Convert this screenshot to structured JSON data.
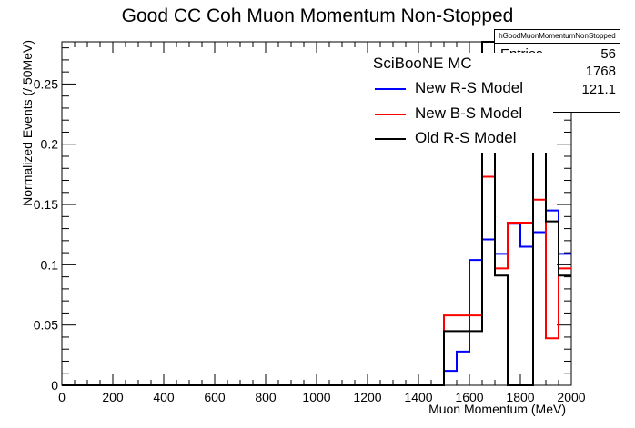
{
  "chart_data": {
    "type": "line",
    "title": "Good CC Coh Muon Momentum Non-Stopped",
    "xlabel": "Muon Momentum (MeV)",
    "ylabel": "Normalized Events (/ 50MeV)",
    "xlim": [
      0,
      2000
    ],
    "ylim": [
      0,
      0.285
    ],
    "x_ticks": [
      "0",
      "200",
      "400",
      "600",
      "800",
      "1000",
      "1200",
      "1400",
      "1600",
      "1800",
      "2000"
    ],
    "y_ticks": [
      "0",
      "0.05",
      "0.1",
      "0.15",
      "0.2",
      "0.25"
    ],
    "y_tick_values": [
      0,
      0.05,
      0.1,
      0.15,
      0.2,
      0.25
    ],
    "bin_edges": [
      0,
      50,
      100,
      150,
      200,
      250,
      300,
      350,
      400,
      450,
      500,
      550,
      600,
      650,
      700,
      750,
      800,
      850,
      900,
      950,
      1000,
      1050,
      1100,
      1150,
      1200,
      1250,
      1300,
      1350,
      1400,
      1450,
      1500,
      1550,
      1600,
      1650,
      1700,
      1750,
      1800,
      1850,
      1900,
      1950,
      2000
    ],
    "grid": false,
    "series": [
      {
        "name": "New R-S Model",
        "color": "#0000ff",
        "values": [
          0,
          0,
          0,
          0,
          0,
          0,
          0,
          0,
          0,
          0,
          0,
          0,
          0,
          0,
          0,
          0,
          0,
          0,
          0,
          0,
          0,
          0,
          0,
          0,
          0,
          0,
          0,
          0,
          0,
          0,
          0.012,
          0.028,
          0.104,
          0.121,
          0.109,
          0.134,
          0.115,
          0.127,
          0.145,
          0.109
        ]
      },
      {
        "name": "New B-S Model",
        "color": "#ff0000",
        "values": [
          0,
          0,
          0,
          0,
          0,
          0,
          0,
          0,
          0,
          0,
          0,
          0,
          0,
          0,
          0,
          0,
          0,
          0,
          0,
          0,
          0,
          0,
          0,
          0,
          0,
          0,
          0,
          0,
          0,
          0,
          0.058,
          0.058,
          0.058,
          0.173,
          0.097,
          0.135,
          0.135,
          0.154,
          0.039,
          0.097
        ]
      },
      {
        "name": "Old R-S Model",
        "color": "#000000",
        "values": [
          0,
          0,
          0,
          0,
          0,
          0,
          0,
          0,
          0,
          0,
          0,
          0,
          0,
          0,
          0,
          0,
          0,
          0,
          0,
          0,
          0,
          0,
          0,
          0,
          0,
          0,
          0,
          0,
          0,
          0,
          0.045,
          0.045,
          0.045,
          0.285,
          0.091,
          0,
          0,
          0.285,
          0.136,
          0.091
        ]
      }
    ]
  },
  "stats": {
    "title": "hGoodMuonMomentumNonStopped",
    "rows": [
      {
        "key": "Entries",
        "value": "56"
      },
      {
        "key": "",
        "value": "1768"
      },
      {
        "key": "",
        "value": "121.1"
      }
    ]
  },
  "legend": {
    "title": "SciBooNE MC",
    "entries": [
      {
        "label": "New R-S Model",
        "color": "#0000ff"
      },
      {
        "label": "New B-S Model",
        "color": "#ff0000"
      },
      {
        "label": "Old R-S Model",
        "color": "#000000"
      }
    ]
  }
}
